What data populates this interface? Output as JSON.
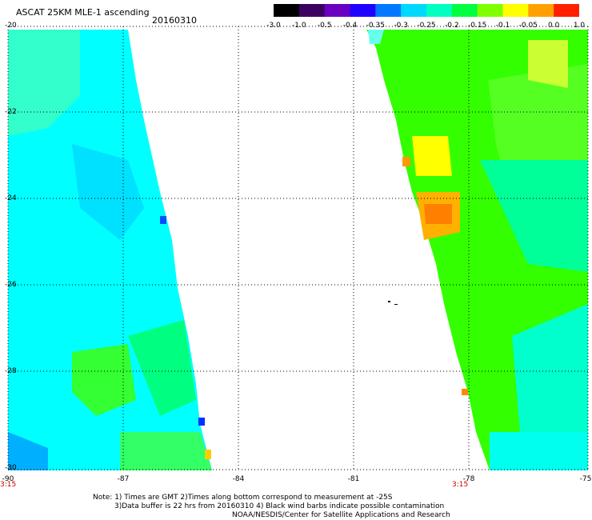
{
  "header": {
    "title": "ASCAT 25KM MLE-1 ascending",
    "date": "20160310"
  },
  "colorbar": {
    "labels": [
      "-3.0",
      "-1.0",
      "-0.5",
      "-0.4",
      "-0.35",
      "-0.3",
      "-0.25",
      "-0.2",
      "-0.15",
      "-0.1",
      "-0.05",
      "0.0",
      "1.0"
    ],
    "colors": [
      "#000000",
      "#3b0060",
      "#6a00c0",
      "#2000ff",
      "#0078ff",
      "#00d8ff",
      "#00ffc0",
      "#00ff40",
      "#80ff00",
      "#ffff00",
      "#ffa000",
      "#ff2000"
    ]
  },
  "axes": {
    "lat_labels": [
      "-20",
      "-22",
      "-24",
      "-26",
      "-28",
      "-30"
    ],
    "lon_labels": [
      "-90",
      "-87",
      "-84",
      "-81",
      "-78",
      "-75"
    ],
    "time_labels": [
      "3:15",
      "3:15"
    ]
  },
  "notes": {
    "line1": "Note: 1) Times are GMT 2)Times along bottom correspond to measurement at -25S",
    "line2": "3)Data buffer is 22 hrs from 20160310 4) Black wind barbs indicate possible contamination",
    "line3": "NOAA/NESDIS/Center for Satellite Applications and Research"
  },
  "map_data": {
    "swaths": [
      {
        "name": "west",
        "dominant_value": "-0.3",
        "color": "#00ffff"
      },
      {
        "name": "east",
        "dominant_value": "-0.15",
        "color": "#33ff00"
      }
    ]
  }
}
